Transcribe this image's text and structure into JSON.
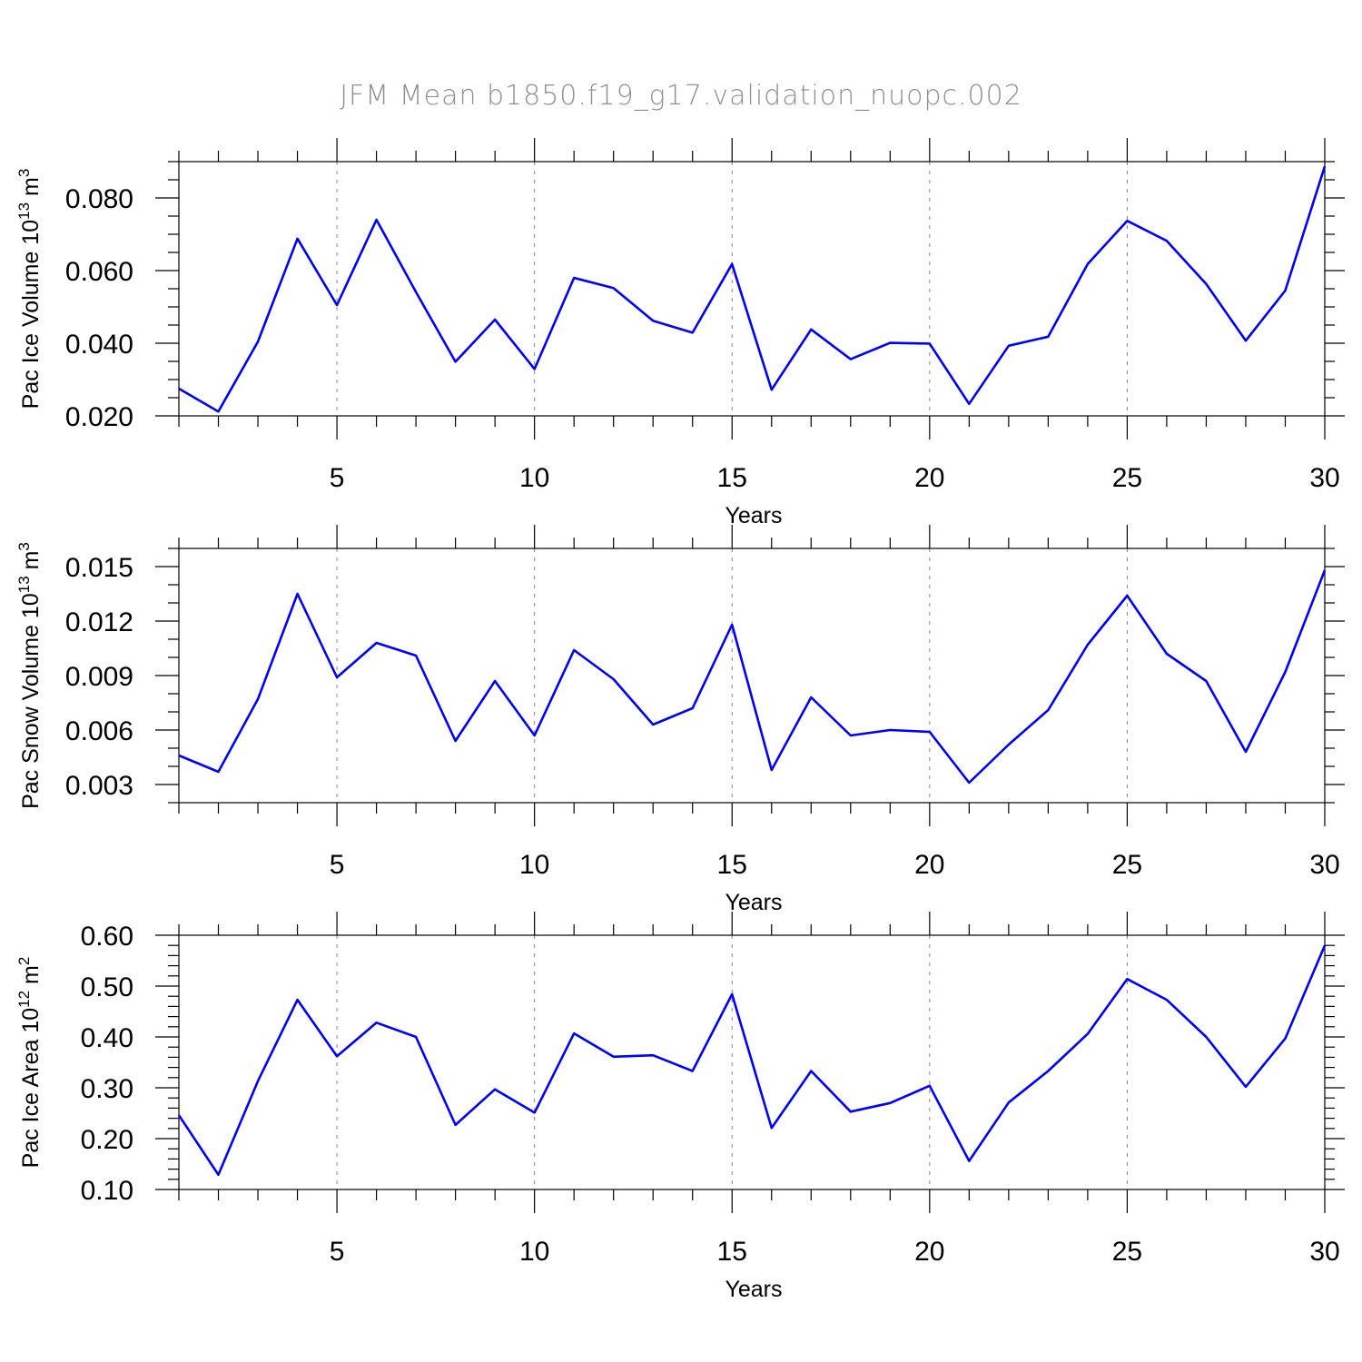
{
  "figure": {
    "title": "JFM Mean b1850.f19_g17.validation_nuopc.002",
    "line_color": "#0000ff",
    "grid_color": "#888888"
  },
  "chart_data": [
    {
      "type": "line",
      "title": "JFM Mean b1850.f19_g17.validation_nuopc.002",
      "xlabel": "Years",
      "ylabel_prefix": "Pac Ice Volume 10",
      "ylabel_exp": "13",
      "ylabel_unit": " m",
      "ylabel_unit_exp": "3",
      "xlim": [
        1,
        30
      ],
      "ylim": [
        0.02,
        0.09
      ],
      "x_ticks": [
        5,
        10,
        15,
        20,
        25,
        30
      ],
      "y_ticks": [
        0.02,
        0.04,
        0.06,
        0.08
      ],
      "y_tick_labels": [
        "0.020",
        "0.040",
        "0.060",
        "0.080"
      ],
      "y_minor_step": 0.005,
      "grid_x": [
        5,
        10,
        15,
        20,
        25
      ],
      "series": [
        {
          "name": "Pac Ice Volume",
          "x": [
            1,
            2,
            3,
            4,
            5,
            6,
            7,
            8,
            9,
            10,
            11,
            12,
            13,
            14,
            15,
            16,
            17,
            18,
            19,
            20,
            21,
            22,
            23,
            24,
            25,
            26,
            27,
            28,
            29,
            30
          ],
          "values": [
            0.0275,
            0.0212,
            0.0404,
            0.0688,
            0.0505,
            0.074,
            0.0541,
            0.0349,
            0.0465,
            0.0329,
            0.058,
            0.0552,
            0.0462,
            0.0429,
            0.0618,
            0.0272,
            0.0438,
            0.0356,
            0.0401,
            0.0399,
            0.0233,
            0.0393,
            0.0418,
            0.0618,
            0.0737,
            0.0682,
            0.0563,
            0.0407,
            0.0545,
            0.0887
          ]
        }
      ]
    },
    {
      "type": "line",
      "xlabel": "Years",
      "ylabel_prefix": "Pac Snow Volume 10",
      "ylabel_exp": "13",
      "ylabel_unit": " m",
      "ylabel_unit_exp": "3",
      "xlim": [
        1,
        30
      ],
      "ylim": [
        0.002,
        0.016
      ],
      "x_ticks": [
        5,
        10,
        15,
        20,
        25,
        30
      ],
      "y_ticks": [
        0.003,
        0.006,
        0.009,
        0.012,
        0.015
      ],
      "y_tick_labels": [
        "0.003",
        "0.006",
        "0.009",
        "0.012",
        "0.015"
      ],
      "y_minor_step": 0.001,
      "grid_x": [
        5,
        10,
        15,
        20,
        25
      ],
      "series": [
        {
          "name": "Pac Snow Volume",
          "x": [
            1,
            2,
            3,
            4,
            5,
            6,
            7,
            8,
            9,
            10,
            11,
            12,
            13,
            14,
            15,
            16,
            17,
            18,
            19,
            20,
            21,
            22,
            23,
            24,
            25,
            26,
            27,
            28,
            29,
            30
          ],
          "values": [
            0.0046,
            0.0037,
            0.0077,
            0.0135,
            0.0089,
            0.0108,
            0.0101,
            0.0054,
            0.0087,
            0.0057,
            0.0104,
            0.0088,
            0.0063,
            0.0072,
            0.0118,
            0.0038,
            0.0078,
            0.0057,
            0.006,
            0.0059,
            0.0031,
            0.0052,
            0.0071,
            0.0107,
            0.0134,
            0.0102,
            0.0087,
            0.0048,
            0.0092,
            0.0148
          ]
        }
      ]
    },
    {
      "type": "line",
      "xlabel": "Years",
      "ylabel_prefix": "Pac Ice Area 10",
      "ylabel_exp": "12",
      "ylabel_unit": " m",
      "ylabel_unit_exp": "2",
      "xlim": [
        1,
        30
      ],
      "ylim": [
        0.1,
        0.6
      ],
      "x_ticks": [
        5,
        10,
        15,
        20,
        25,
        30
      ],
      "y_ticks": [
        0.1,
        0.2,
        0.3,
        0.4,
        0.5,
        0.6
      ],
      "y_tick_labels": [
        "0.10",
        "0.20",
        "0.30",
        "0.40",
        "0.50",
        "0.60"
      ],
      "y_minor_step": 0.02,
      "grid_x": [
        5,
        10,
        15,
        20,
        25
      ],
      "series": [
        {
          "name": "Pac Ice Area",
          "x": [
            1,
            2,
            3,
            4,
            5,
            6,
            7,
            8,
            9,
            10,
            11,
            12,
            13,
            14,
            15,
            16,
            17,
            18,
            19,
            20,
            21,
            22,
            23,
            24,
            25,
            26,
            27,
            28,
            29,
            30
          ],
          "values": [
            0.246,
            0.129,
            0.313,
            0.473,
            0.362,
            0.428,
            0.4,
            0.227,
            0.297,
            0.251,
            0.407,
            0.361,
            0.364,
            0.333,
            0.484,
            0.221,
            0.333,
            0.253,
            0.27,
            0.304,
            0.156,
            0.271,
            0.333,
            0.406,
            0.514,
            0.473,
            0.4,
            0.302,
            0.397,
            0.58
          ]
        }
      ]
    }
  ]
}
